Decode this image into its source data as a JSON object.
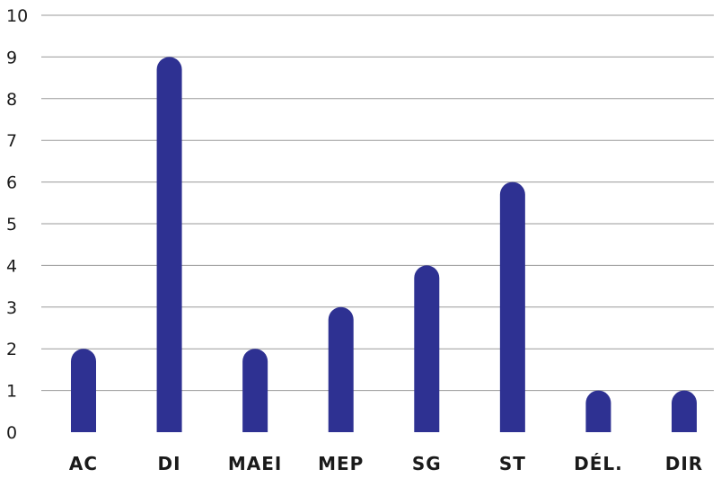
{
  "chart_data": {
    "type": "bar",
    "categories": [
      "AC",
      "DI",
      "MAEI",
      "MEP",
      "SG",
      "ST",
      "DÉL.",
      "DIR"
    ],
    "values": [
      2,
      9,
      2,
      3,
      4,
      6,
      1,
      1
    ],
    "title": "",
    "xlabel": "",
    "ylabel": "",
    "ylim": [
      0,
      10
    ],
    "yticks": [
      "0",
      "1",
      "2",
      "3",
      "4",
      "5",
      "6",
      "7",
      "8",
      "9",
      "10"
    ],
    "grid": true,
    "bar_color": "#2e3192"
  }
}
